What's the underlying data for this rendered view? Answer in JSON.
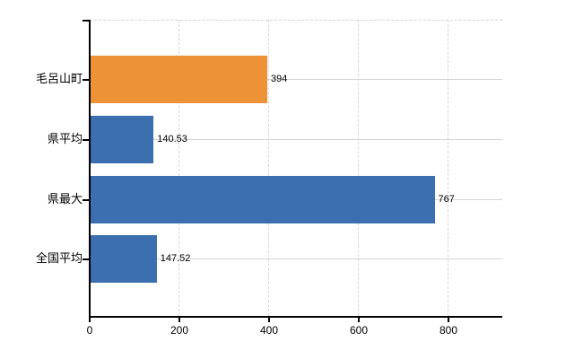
{
  "chart_data": {
    "type": "bar",
    "orientation": "horizontal",
    "title": "",
    "xlabel": "",
    "ylabel": "",
    "categories": [
      "毛呂山町",
      "県平均",
      "県最大",
      "全国平均"
    ],
    "values": [
      394,
      140.53,
      767,
      147.52
    ],
    "value_labels": [
      "394",
      "140.53",
      "767",
      "147.52"
    ],
    "bar_colors": [
      "#EE9238",
      "#3C6FAF",
      "#3C6FAF",
      "#3C6FAF"
    ],
    "x_ticks": [
      0,
      200,
      400,
      600,
      800
    ],
    "x_tick_labels": [
      "0",
      "200",
      "400",
      "600",
      "800"
    ],
    "xlim": [
      0,
      920
    ],
    "grid": true,
    "legend": "none",
    "colors": {
      "highlight_bar": "#EE9238",
      "default_bar": "#3C6FAF",
      "gridline": "#d2d6d2",
      "axis": "#000000",
      "text": "#000000",
      "background": "#ffffff"
    }
  }
}
